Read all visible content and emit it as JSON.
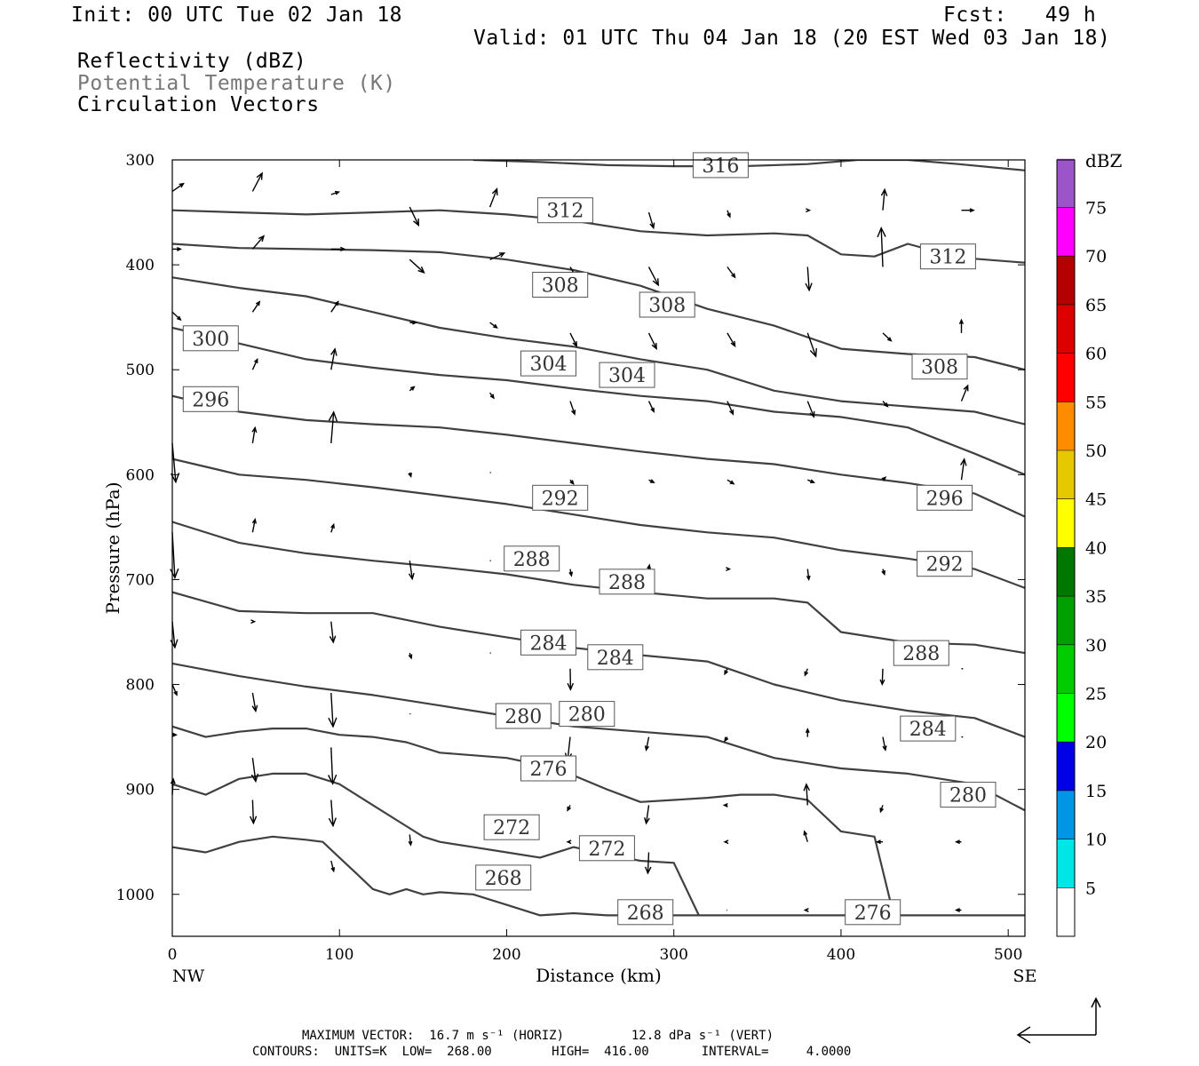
{
  "header": {
    "init": "Init: 00 UTC Tue 02 Jan 18",
    "fcst": "Fcst:   49 h",
    "valid": "Valid: 01 UTC Thu 04 Jan 18 (20 EST Wed 03 Jan 18)",
    "field1": "Reflectivity (dBZ)",
    "field2": "Potential Temperature (K)",
    "field3": "Circulation Vectors"
  },
  "colors": {
    "field2_text": "#777777",
    "contour_line": "#404040",
    "vector": "#000000"
  },
  "chart_data": {
    "type": "line",
    "title": "",
    "xlabel": "Distance (km)",
    "ylabel": "Pressure (hPa)",
    "xlim": [
      0,
      510
    ],
    "ylim": [
      1040,
      300
    ],
    "y_scale": "pressure (inverted)",
    "x_ticks": [
      "0",
      "100",
      "200",
      "300",
      "400",
      "500"
    ],
    "y_ticks": [
      "300",
      "400",
      "500",
      "600",
      "700",
      "800",
      "900",
      "1000"
    ],
    "x_end_labels": {
      "left": "NW",
      "right": "SE"
    },
    "grid": false,
    "contour_units": "K",
    "contour_low": 268,
    "contour_high": 416,
    "contour_interval": 4,
    "series": [
      {
        "name": "316",
        "x": [
          180,
          220,
          260,
          300,
          340,
          380,
          410,
          440,
          470,
          510
        ],
        "y": [
          300,
          302,
          305,
          306,
          306,
          304,
          300,
          300,
          304,
          310
        ]
      },
      {
        "name": "312",
        "x": [
          0,
          40,
          80,
          120,
          160,
          200,
          240,
          280,
          320,
          360,
          380,
          400,
          420,
          440,
          470,
          510
        ],
        "y": [
          348,
          350,
          352,
          350,
          348,
          352,
          358,
          368,
          372,
          370,
          372,
          390,
          392,
          380,
          393,
          398
        ]
      },
      {
        "name": "308",
        "x": [
          0,
          40,
          80,
          120,
          160,
          200,
          240,
          280,
          320,
          360,
          400,
          440,
          480,
          510
        ],
        "y": [
          380,
          384,
          385,
          386,
          388,
          395,
          405,
          420,
          442,
          458,
          480,
          485,
          488,
          500
        ]
      },
      {
        "name": "304",
        "x": [
          0,
          40,
          80,
          120,
          160,
          200,
          240,
          280,
          320,
          360,
          400,
          440,
          480,
          510
        ],
        "y": [
          412,
          422,
          430,
          445,
          460,
          470,
          478,
          490,
          500,
          520,
          530,
          535,
          540,
          552
        ]
      },
      {
        "name": "300",
        "x": [
          0,
          40,
          80,
          120,
          160,
          200,
          240,
          280,
          320,
          360,
          400,
          440,
          480,
          510
        ],
        "y": [
          460,
          475,
          490,
          498,
          505,
          510,
          518,
          525,
          530,
          540,
          545,
          555,
          580,
          600
        ]
      },
      {
        "name": "296",
        "x": [
          0,
          40,
          80,
          120,
          160,
          200,
          240,
          280,
          320,
          360,
          400,
          440,
          480,
          510
        ],
        "y": [
          525,
          540,
          548,
          552,
          555,
          562,
          570,
          578,
          585,
          590,
          600,
          608,
          618,
          640
        ]
      },
      {
        "name": "292",
        "x": [
          0,
          40,
          80,
          120,
          160,
          200,
          240,
          280,
          320,
          360,
          400,
          440,
          480,
          510
        ],
        "y": [
          585,
          600,
          605,
          612,
          620,
          628,
          638,
          648,
          655,
          660,
          672,
          680,
          690,
          708
        ]
      },
      {
        "name": "288",
        "x": [
          0,
          40,
          80,
          120,
          160,
          200,
          240,
          280,
          320,
          360,
          380,
          400,
          440,
          480,
          510
        ],
        "y": [
          645,
          665,
          675,
          682,
          688,
          695,
          705,
          712,
          718,
          718,
          722,
          750,
          760,
          762,
          770
        ]
      },
      {
        "name": "284",
        "x": [
          0,
          40,
          80,
          120,
          160,
          200,
          240,
          280,
          320,
          360,
          400,
          440,
          480,
          510
        ],
        "y": [
          712,
          730,
          732,
          732,
          745,
          755,
          765,
          772,
          778,
          800,
          815,
          825,
          832,
          850
        ]
      },
      {
        "name": "280",
        "x": [
          0,
          40,
          80,
          120,
          160,
          200,
          240,
          280,
          320,
          360,
          400,
          440,
          480,
          510
        ],
        "y": [
          780,
          792,
          802,
          810,
          820,
          830,
          840,
          845,
          850,
          870,
          880,
          885,
          895,
          920
        ]
      },
      {
        "name": "276",
        "x": [
          0,
          20,
          40,
          60,
          80,
          100,
          120,
          140,
          160,
          200,
          230,
          260,
          280,
          300,
          320,
          340,
          360,
          380,
          400,
          420,
          430
        ],
        "y": [
          840,
          850,
          845,
          842,
          842,
          848,
          850,
          855,
          865,
          870,
          880,
          900,
          912,
          910,
          908,
          905,
          905,
          910,
          940,
          945,
          1010
        ]
      },
      {
        "name": "272",
        "x": [
          0,
          20,
          40,
          60,
          80,
          100,
          120,
          140,
          150,
          160,
          180,
          200,
          220,
          240,
          260,
          280,
          300,
          315
        ],
        "y": [
          895,
          905,
          890,
          885,
          885,
          895,
          915,
          935,
          945,
          950,
          955,
          960,
          965,
          955,
          962,
          968,
          970,
          1020
        ]
      },
      {
        "name": "268",
        "x": [
          0,
          20,
          40,
          60,
          80,
          90,
          100,
          110,
          120,
          130,
          140,
          150,
          160,
          180,
          200,
          220,
          240,
          260,
          280,
          510
        ],
        "y": [
          955,
          960,
          950,
          945,
          948,
          950,
          965,
          980,
          995,
          1000,
          995,
          1000,
          998,
          1000,
          1010,
          1020,
          1018,
          1020,
          1020,
          1020
        ]
      }
    ],
    "colorbar": {
      "label": "dBZ",
      "levels": [
        "5",
        "10",
        "15",
        "20",
        "25",
        "30",
        "35",
        "40",
        "45",
        "50",
        "55",
        "60",
        "65",
        "70",
        "75"
      ],
      "colors": [
        "#ffffff",
        "#00e5e5",
        "#0096e6",
        "#0000e6",
        "#00ff00",
        "#00cc00",
        "#00a000",
        "#007800",
        "#ffff00",
        "#e6c800",
        "#ff8c00",
        "#ff0000",
        "#dc0000",
        "#b40000",
        "#ff00ff",
        "#9b55c8",
        "#ffffff"
      ]
    }
  },
  "contour_labels": [
    {
      "text": "316",
      "x": 328,
      "y": 305
    },
    {
      "text": "312",
      "x": 235,
      "y": 348
    },
    {
      "text": "312",
      "x": 464,
      "y": 392
    },
    {
      "text": "308",
      "x": 232,
      "y": 419
    },
    {
      "text": "308",
      "x": 296,
      "y": 438
    },
    {
      "text": "308",
      "x": 459,
      "y": 497
    },
    {
      "text": "300",
      "x": 23,
      "y": 470
    },
    {
      "text": "304",
      "x": 225,
      "y": 494
    },
    {
      "text": "304",
      "x": 272,
      "y": 505
    },
    {
      "text": "296",
      "x": 23,
      "y": 528
    },
    {
      "text": "292",
      "x": 232,
      "y": 622
    },
    {
      "text": "296",
      "x": 462,
      "y": 622
    },
    {
      "text": "288",
      "x": 215,
      "y": 680
    },
    {
      "text": "288",
      "x": 272,
      "y": 702
    },
    {
      "text": "292",
      "x": 462,
      "y": 685
    },
    {
      "text": "284",
      "x": 225,
      "y": 760
    },
    {
      "text": "284",
      "x": 265,
      "y": 774
    },
    {
      "text": "288",
      "x": 448,
      "y": 770
    },
    {
      "text": "280",
      "x": 210,
      "y": 830
    },
    {
      "text": "280",
      "x": 248,
      "y": 828
    },
    {
      "text": "284",
      "x": 452,
      "y": 842
    },
    {
      "text": "276",
      "x": 225,
      "y": 880
    },
    {
      "text": "280",
      "x": 476,
      "y": 905
    },
    {
      "text": "272",
      "x": 203,
      "y": 936
    },
    {
      "text": "272",
      "x": 260,
      "y": 956
    },
    {
      "text": "268",
      "x": 198,
      "y": 984
    },
    {
      "text": "268",
      "x": 283,
      "y": 1017
    },
    {
      "text": "276",
      "x": 419,
      "y": 1017
    }
  ],
  "vectors": [
    {
      "x": 0,
      "y": 330,
      "u": 35,
      "v": -6
    },
    {
      "x": 48,
      "y": 330,
      "u": 30,
      "v": -14
    },
    {
      "x": 95,
      "y": 333,
      "u": 24,
      "v": -2
    },
    {
      "x": 142,
      "y": 345,
      "u": 28,
      "v": 14
    },
    {
      "x": 190,
      "y": 345,
      "u": 22,
      "v": -14
    },
    {
      "x": 238,
      "y": 350,
      "u": 15,
      "v": 2
    },
    {
      "x": 285,
      "y": 350,
      "u": 15,
      "v": 12
    },
    {
      "x": 332,
      "y": 348,
      "u": 8,
      "v": 5
    },
    {
      "x": 380,
      "y": 348,
      "u": 6,
      "v": 0
    },
    {
      "x": 425,
      "y": 348,
      "u": 6,
      "v": -16
    },
    {
      "x": 472,
      "y": 348,
      "u": 38,
      "v": 0
    },
    {
      "x": 0,
      "y": 385,
      "u": 26,
      "v": 0
    },
    {
      "x": 48,
      "y": 385,
      "u": 35,
      "v": -10
    },
    {
      "x": 95,
      "y": 385,
      "u": 42,
      "v": 0
    },
    {
      "x": 142,
      "y": 395,
      "u": 45,
      "v": 10
    },
    {
      "x": 190,
      "y": 395,
      "u": 45,
      "v": -5
    },
    {
      "x": 238,
      "y": 402,
      "u": 38,
      "v": 16
    },
    {
      "x": 285,
      "y": 402,
      "u": 30,
      "v": 14
    },
    {
      "x": 332,
      "y": 402,
      "u": 24,
      "v": 8
    },
    {
      "x": 380,
      "y": 402,
      "u": 5,
      "v": 18
    },
    {
      "x": 425,
      "y": 402,
      "u": -5,
      "v": -30
    },
    {
      "x": 0,
      "y": 445,
      "u": 26,
      "v": 6
    },
    {
      "x": 48,
      "y": 445,
      "u": 22,
      "v": -8
    },
    {
      "x": 95,
      "y": 445,
      "u": 22,
      "v": -8
    },
    {
      "x": 142,
      "y": 455,
      "u": 20,
      "v": 0
    },
    {
      "x": 190,
      "y": 455,
      "u": 22,
      "v": 4
    },
    {
      "x": 238,
      "y": 465,
      "u": 20,
      "v": 10
    },
    {
      "x": 285,
      "y": 465,
      "u": 24,
      "v": 12
    },
    {
      "x": 332,
      "y": 465,
      "u": 24,
      "v": 10
    },
    {
      "x": 380,
      "y": 465,
      "u": 26,
      "v": 18
    },
    {
      "x": 425,
      "y": 465,
      "u": 26,
      "v": 6
    },
    {
      "x": 472,
      "y": 465,
      "u": 0,
      "v": -10
    },
    {
      "x": 48,
      "y": 500,
      "u": 15,
      "v": -8
    },
    {
      "x": 95,
      "y": 500,
      "u": 12,
      "v": -16
    },
    {
      "x": 142,
      "y": 520,
      "u": 14,
      "v": -3
    },
    {
      "x": 190,
      "y": 522,
      "u": 12,
      "v": 4
    },
    {
      "x": 238,
      "y": 530,
      "u": 14,
      "v": 10
    },
    {
      "x": 285,
      "y": 530,
      "u": 16,
      "v": 8
    },
    {
      "x": 332,
      "y": 530,
      "u": 18,
      "v": 10
    },
    {
      "x": 380,
      "y": 530,
      "u": 20,
      "v": 12
    },
    {
      "x": 425,
      "y": 530,
      "u": 15,
      "v": 4
    },
    {
      "x": 472,
      "y": 530,
      "u": 20,
      "v": -12
    },
    {
      "x": 0,
      "y": 570,
      "u": 11,
      "v": 30
    },
    {
      "x": 48,
      "y": 570,
      "u": 8,
      "v": -12
    },
    {
      "x": 95,
      "y": 570,
      "u": 8,
      "v": -24
    },
    {
      "x": 142,
      "y": 598,
      "u": 4,
      "v": 3
    },
    {
      "x": 190,
      "y": 598,
      "u": 3,
      "v": 0
    },
    {
      "x": 238,
      "y": 605,
      "u": 10,
      "v": 3
    },
    {
      "x": 285,
      "y": 605,
      "u": 16,
      "v": 2
    },
    {
      "x": 332,
      "y": 605,
      "u": 20,
      "v": 3
    },
    {
      "x": 380,
      "y": 605,
      "u": 20,
      "v": 2
    },
    {
      "x": 425,
      "y": 605,
      "u": 8,
      "v": -2
    },
    {
      "x": 472,
      "y": 605,
      "u": 9,
      "v": -16
    },
    {
      "x": 0,
      "y": 655,
      "u": 8,
      "v": 35
    },
    {
      "x": 48,
      "y": 655,
      "u": 8,
      "v": -10
    },
    {
      "x": 95,
      "y": 655,
      "u": 8,
      "v": -6
    },
    {
      "x": 142,
      "y": 682,
      "u": 8,
      "v": 14
    },
    {
      "x": 190,
      "y": 682,
      "u": 3,
      "v": 0
    },
    {
      "x": 238,
      "y": 690,
      "u": 4,
      "v": 5
    },
    {
      "x": 285,
      "y": 690,
      "u": 2,
      "v": -3
    },
    {
      "x": 332,
      "y": 690,
      "u": 7,
      "v": 0
    },
    {
      "x": 380,
      "y": 690,
      "u": 4,
      "v": 8
    },
    {
      "x": 425,
      "y": 690,
      "u": 5,
      "v": 4
    },
    {
      "x": 472,
      "y": 690,
      "u": -8,
      "v": -3
    },
    {
      "x": 0,
      "y": 740,
      "u": 8,
      "v": 20
    },
    {
      "x": 48,
      "y": 740,
      "u": 6,
      "v": 0
    },
    {
      "x": 95,
      "y": 740,
      "u": 7,
      "v": 16
    },
    {
      "x": 142,
      "y": 770,
      "u": 5,
      "v": 4
    },
    {
      "x": 190,
      "y": 770,
      "u": 3,
      "v": 0
    },
    {
      "x": 238,
      "y": 785,
      "u": 1,
      "v": 16
    },
    {
      "x": 332,
      "y": 785,
      "u": -8,
      "v": 4
    },
    {
      "x": 380,
      "y": 785,
      "u": -8,
      "v": 5
    },
    {
      "x": 425,
      "y": 785,
      "u": -2,
      "v": 12
    },
    {
      "x": 472,
      "y": 785,
      "u": 5,
      "v": 0
    },
    {
      "x": 0,
      "y": 800,
      "u": 14,
      "v": 8
    },
    {
      "x": 48,
      "y": 808,
      "u": 10,
      "v": 14
    },
    {
      "x": 95,
      "y": 808,
      "u": 6,
      "v": 26
    },
    {
      "x": 142,
      "y": 828,
      "u": 3,
      "v": 0
    },
    {
      "x": 238,
      "y": 850,
      "u": -8,
      "v": 18
    },
    {
      "x": 285,
      "y": 850,
      "u": -8,
      "v": 10
    },
    {
      "x": 332,
      "y": 850,
      "u": -8,
      "v": 3
    },
    {
      "x": 380,
      "y": 850,
      "u": 0,
      "v": -6
    },
    {
      "x": 425,
      "y": 850,
      "u": 8,
      "v": 10
    },
    {
      "x": 472,
      "y": 850,
      "u": 5,
      "v": 0
    },
    {
      "x": 0,
      "y": 848,
      "u": 12,
      "v": 0
    },
    {
      "x": 48,
      "y": 870,
      "u": 10,
      "v": 18
    },
    {
      "x": 95,
      "y": 860,
      "u": 5,
      "v": 28
    },
    {
      "x": 238,
      "y": 915,
      "u": -8,
      "v": 4
    },
    {
      "x": 285,
      "y": 915,
      "u": -8,
      "v": 14
    },
    {
      "x": 332,
      "y": 915,
      "u": -10,
      "v": 0
    },
    {
      "x": 380,
      "y": 915,
      "u": -4,
      "v": -16
    },
    {
      "x": 425,
      "y": 915,
      "u": -7,
      "v": 5
    },
    {
      "x": 472,
      "y": 915,
      "u": -10,
      "v": 0
    },
    {
      "x": 0,
      "y": 905,
      "u": 3,
      "v": -12
    },
    {
      "x": 48,
      "y": 910,
      "u": 3,
      "v": 18
    },
    {
      "x": 95,
      "y": 910,
      "u": 6,
      "v": 20
    },
    {
      "x": 142,
      "y": 943,
      "u": 3,
      "v": 8
    },
    {
      "x": 238,
      "y": 950,
      "u": -8,
      "v": 0
    },
    {
      "x": 285,
      "y": 960,
      "u": -3,
      "v": 16
    },
    {
      "x": 332,
      "y": 950,
      "u": -8,
      "v": 0
    },
    {
      "x": 380,
      "y": 950,
      "u": -10,
      "v": -8
    },
    {
      "x": 425,
      "y": 950,
      "u": -18,
      "v": 0
    },
    {
      "x": 472,
      "y": 950,
      "u": -16,
      "v": 0
    },
    {
      "x": 95,
      "y": 968,
      "u": 8,
      "v": 8
    },
    {
      "x": 332,
      "y": 1015,
      "u": -2,
      "v": 0
    },
    {
      "x": 380,
      "y": 1015,
      "u": -8,
      "v": 0
    },
    {
      "x": 425,
      "y": 1015,
      "u": -8,
      "v": 0
    },
    {
      "x": 472,
      "y": 1015,
      "u": -16,
      "v": 0
    }
  ],
  "footer": {
    "line1": "MAXIMUM VECTOR:  16.7 m s⁻¹ (HORIZ)         12.8 dPa s⁻¹ (VERT)",
    "line2": "CONTOURS:  UNITS=K  LOW=  268.00        HIGH=  416.00       INTERVAL=     4.0000"
  }
}
